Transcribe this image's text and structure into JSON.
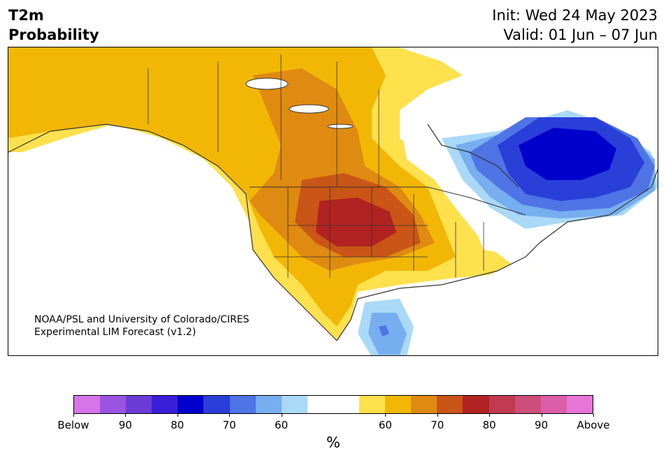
{
  "header": {
    "title_line1": "T2m",
    "title_line2": "Probability",
    "init": "Init: Wed 24 May 2023",
    "valid": "Valid: 01 Jun – 07 Jun"
  },
  "credit": {
    "line1": "NOAA/PSL and University of Colorado/CIRES",
    "line2": "Experimental LIM Forecast (v1.2)"
  },
  "colorbar": {
    "unit": "%",
    "colors": [
      "#d675e8",
      "#9a55e0",
      "#6c3bd8",
      "#3a1fd8",
      "#0000cc",
      "#2a3fd8",
      "#4f74e6",
      "#77aef0",
      "#aad9f8",
      "#ffffff",
      "#ffe04d",
      "#f2b705",
      "#df8a10",
      "#c95516",
      "#b22222",
      "#c23a50",
      "#cf4d7a",
      "#db5fa8",
      "#e875d8"
    ],
    "ticks": [
      "Below",
      "90",
      "80",
      "70",
      "60",
      "60",
      "70",
      "80",
      "90",
      "Above"
    ]
  },
  "legend_colors": {
    "land_lines": "#333333",
    "water": "#ffffff"
  }
}
